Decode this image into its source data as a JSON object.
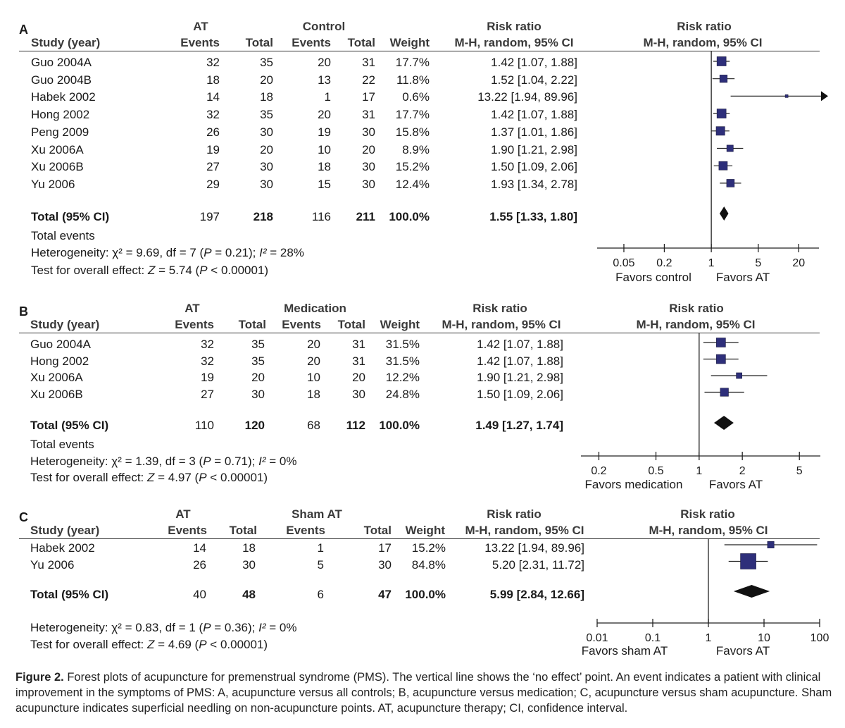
{
  "panels": [
    {
      "letter": "A",
      "group1_label": "AT",
      "group2_label": "Control",
      "col_study": "Study (year)",
      "col_events": "Events",
      "col_total": "Total",
      "col_weight": "Weight",
      "col_rr_top": "Risk ratio",
      "col_rr_bottom": "M-H, random, 95% CI",
      "forest_top": "Risk ratio",
      "forest_bottom": "M-H, random, 95% CI",
      "studies": [
        {
          "name": "Guo 2004A",
          "e1": "32",
          "n1": "35",
          "e2": "20",
          "n2": "31",
          "weight": "17.7%",
          "ci": "1.42 [1.07, 1.88]"
        },
        {
          "name": "Guo 2004B",
          "e1": "18",
          "n1": "20",
          "e2": "13",
          "n2": "22",
          "weight": "11.8%",
          "ci": "1.52 [1.04, 2.22]"
        },
        {
          "name": "Habek 2002",
          "e1": "14",
          "n1": "18",
          "e2": "1",
          "n2": "17",
          "weight": "0.6%",
          "ci": "13.22 [1.94, 89.96]"
        },
        {
          "name": "Hong 2002",
          "e1": "32",
          "n1": "35",
          "e2": "20",
          "n2": "31",
          "weight": "17.7%",
          "ci": "1.42 [1.07, 1.88]"
        },
        {
          "name": "Peng 2009",
          "e1": "26",
          "n1": "30",
          "e2": "19",
          "n2": "30",
          "weight": "15.8%",
          "ci": "1.37 [1.01, 1.86]"
        },
        {
          "name": "Xu 2006A",
          "e1": "19",
          "n1": "20",
          "e2": "10",
          "n2": "20",
          "weight": "8.9%",
          "ci": "1.90 [1.21, 2.98]"
        },
        {
          "name": "Xu 2006B",
          "e1": "27",
          "n1": "30",
          "e2": "18",
          "n2": "30",
          "weight": "15.2%",
          "ci": "1.50 [1.09, 2.06]"
        },
        {
          "name": "Yu 2006",
          "e1": "29",
          "n1": "30",
          "e2": "15",
          "n2": "30",
          "weight": "12.4%",
          "ci": "1.93 [1.34, 2.78]"
        }
      ],
      "total": {
        "label": "Total (95% CI)",
        "n1": "218",
        "n2": "211",
        "weight": "100.0%",
        "ci": "1.55 [1.33, 1.80]"
      },
      "total_events": {
        "label": "Total events",
        "e1": "197",
        "e2": "116"
      },
      "heterogeneity": {
        "prefix": "Heterogeneity: ",
        "chi": "χ² = 9.69, df = 7 (",
        "p": "P",
        "p_val": " = 0.21); ",
        "i2": "I²",
        "i2_val": " = 28%"
      },
      "overall": {
        "prefix": "Test for overall effect: ",
        "z": "Z",
        "z_val": " = 5.74 (",
        "p": "P",
        "p_val": " < 0.00001)"
      },
      "favors_left": "Favors control",
      "favors_right": "Favors AT"
    },
    {
      "letter": "B",
      "group1_label": "AT",
      "group2_label": "Medication",
      "col_study": "Study (year)",
      "col_events": "Events",
      "col_total": "Total",
      "col_weight": "Weight",
      "col_rr_top": "Risk ratio",
      "col_rr_bottom": "M-H, random, 95% CI",
      "forest_top": "Risk ratio",
      "forest_bottom": "M-H, random, 95% CI",
      "studies": [
        {
          "name": "Guo 2004A",
          "e1": "32",
          "n1": "35",
          "e2": "20",
          "n2": "31",
          "weight": "31.5%",
          "ci": "1.42 [1.07, 1.88]"
        },
        {
          "name": "Hong 2002",
          "e1": "32",
          "n1": "35",
          "e2": "20",
          "n2": "31",
          "weight": "31.5%",
          "ci": "1.42 [1.07, 1.88]"
        },
        {
          "name": "Xu 2006A",
          "e1": "19",
          "n1": "20",
          "e2": "10",
          "n2": "20",
          "weight": "12.2%",
          "ci": "1.90 [1.21, 2.98]"
        },
        {
          "name": "Xu 2006B",
          "e1": "27",
          "n1": "30",
          "e2": "18",
          "n2": "30",
          "weight": "24.8%",
          "ci": "1.50 [1.09, 2.06]"
        }
      ],
      "total": {
        "label": "Total (95% CI)",
        "n1": "120",
        "n2": "112",
        "weight": "100.0%",
        "ci": "1.49 [1.27, 1.74]"
      },
      "total_events": {
        "label": "Total events",
        "e1": "110",
        "e2": "68"
      },
      "heterogeneity": {
        "prefix": "Heterogeneity: ",
        "chi": "χ² = 1.39, df = 3 (",
        "p": "P",
        "p_val": " = 0.71); ",
        "i2": "I²",
        "i2_val": " = 0%"
      },
      "overall": {
        "prefix": "Test for overall effect: ",
        "z": "Z",
        "z_val": " = 4.97 (",
        "p": "P",
        "p_val": " < 0.00001)"
      },
      "favors_left": "Favors medication",
      "favors_right": "Favors AT"
    },
    {
      "letter": "C",
      "group1_label": "AT",
      "group2_label": "Sham AT",
      "col_study": "Study (year)",
      "col_events": "Events",
      "col_total": "Total",
      "col_weight": "Weight",
      "col_rr_top": "Risk ratio",
      "col_rr_bottom": "M-H, random, 95% CI",
      "forest_top": "Risk ratio",
      "forest_bottom": "M-H, random, 95% CI",
      "studies": [
        {
          "name": "Habek 2002",
          "e1": "14",
          "n1": "18",
          "e2": "1",
          "n2": "17",
          "weight": "15.2%",
          "ci": "13.22 [1.94, 89.96]"
        },
        {
          "name": "Yu 2006",
          "e1": "26",
          "n1": "30",
          "e2": "5",
          "n2": "30",
          "weight": "84.8%",
          "ci": "5.20 [2.31, 11.72]"
        }
      ],
      "total": {
        "label": "Total (95% CI)",
        "e1": "40",
        "n1": "48",
        "e2": "6",
        "n2": "47",
        "weight": "100.0%",
        "ci": "5.99 [2.84, 12.66]"
      },
      "heterogeneity": {
        "prefix": "Heterogeneity: ",
        "chi": "χ² = 0.83, df = 1 (",
        "p": "P",
        "p_val": " = 0.36); ",
        "i2": "I²",
        "i2_val": " = 0%"
      },
      "overall": {
        "prefix": "Test for overall effect: ",
        "z": "Z",
        "z_val": " = 4.69 (",
        "p": "P",
        "p_val": " < 0.00001)"
      },
      "favors_left": "Favors sham AT",
      "favors_right": "Favors AT"
    }
  ],
  "caption": {
    "label": "Figure 2.",
    "text": " Forest plots of acupuncture for premenstrual syndrome (PMS). The vertical line shows the ‘no effect’ point. An event indicates a patient with clinical improvement in the symptoms of PMS: A, acupuncture versus all controls; B, acupuncture versus medication; C, acupuncture versus sham acupuncture. Sham acupuncture indicates superficial needling on non-acupuncture points. AT, acupuncture therapy; CI, confidence interval."
  },
  "chart_data": [
    {
      "type": "forest",
      "panel": "A",
      "scale": "log",
      "xlim": [
        0.02,
        40
      ],
      "ticks": [
        0.05,
        0.2,
        1,
        5,
        20
      ],
      "tick_labels": [
        "0.05",
        "0.2",
        "1",
        "5",
        "20"
      ],
      "studies": [
        {
          "rr": 1.42,
          "lo": 1.07,
          "hi": 1.88,
          "weight": 17.7
        },
        {
          "rr": 1.52,
          "lo": 1.04,
          "hi": 2.22,
          "weight": 11.8
        },
        {
          "rr": 13.22,
          "lo": 1.94,
          "hi": 89.96,
          "weight": 0.6
        },
        {
          "rr": 1.42,
          "lo": 1.07,
          "hi": 1.88,
          "weight": 17.7
        },
        {
          "rr": 1.37,
          "lo": 1.01,
          "hi": 1.86,
          "weight": 15.8
        },
        {
          "rr": 1.9,
          "lo": 1.21,
          "hi": 2.98,
          "weight": 8.9
        },
        {
          "rr": 1.5,
          "lo": 1.09,
          "hi": 2.06,
          "weight": 15.2
        },
        {
          "rr": 1.93,
          "lo": 1.34,
          "hi": 2.78,
          "weight": 12.4
        }
      ],
      "pooled": {
        "rr": 1.55,
        "lo": 1.33,
        "hi": 1.8
      }
    },
    {
      "type": "forest",
      "panel": "B",
      "scale": "log",
      "xlim": [
        0.15,
        7
      ],
      "ticks": [
        0.2,
        0.5,
        1,
        2,
        5
      ],
      "tick_labels": [
        "0.2",
        "0.5",
        "1",
        "2",
        "5"
      ],
      "studies": [
        {
          "rr": 1.42,
          "lo": 1.07,
          "hi": 1.88,
          "weight": 31.5
        },
        {
          "rr": 1.42,
          "lo": 1.07,
          "hi": 1.88,
          "weight": 31.5
        },
        {
          "rr": 1.9,
          "lo": 1.21,
          "hi": 2.98,
          "weight": 12.2
        },
        {
          "rr": 1.5,
          "lo": 1.09,
          "hi": 2.06,
          "weight": 24.8
        }
      ],
      "pooled": {
        "rr": 1.49,
        "lo": 1.27,
        "hi": 1.74
      }
    },
    {
      "type": "forest",
      "panel": "C",
      "scale": "log",
      "xlim": [
        0.01,
        100
      ],
      "ticks": [
        0.01,
        0.1,
        1,
        10,
        100
      ],
      "tick_labels": [
        "0.01",
        "0.1",
        "1",
        "10",
        "100"
      ],
      "studies": [
        {
          "rr": 13.22,
          "lo": 1.94,
          "hi": 89.96,
          "weight": 15.2
        },
        {
          "rr": 5.2,
          "lo": 2.31,
          "hi": 11.72,
          "weight": 84.8
        }
      ],
      "pooled": {
        "rr": 5.99,
        "lo": 2.84,
        "hi": 12.66
      }
    }
  ]
}
